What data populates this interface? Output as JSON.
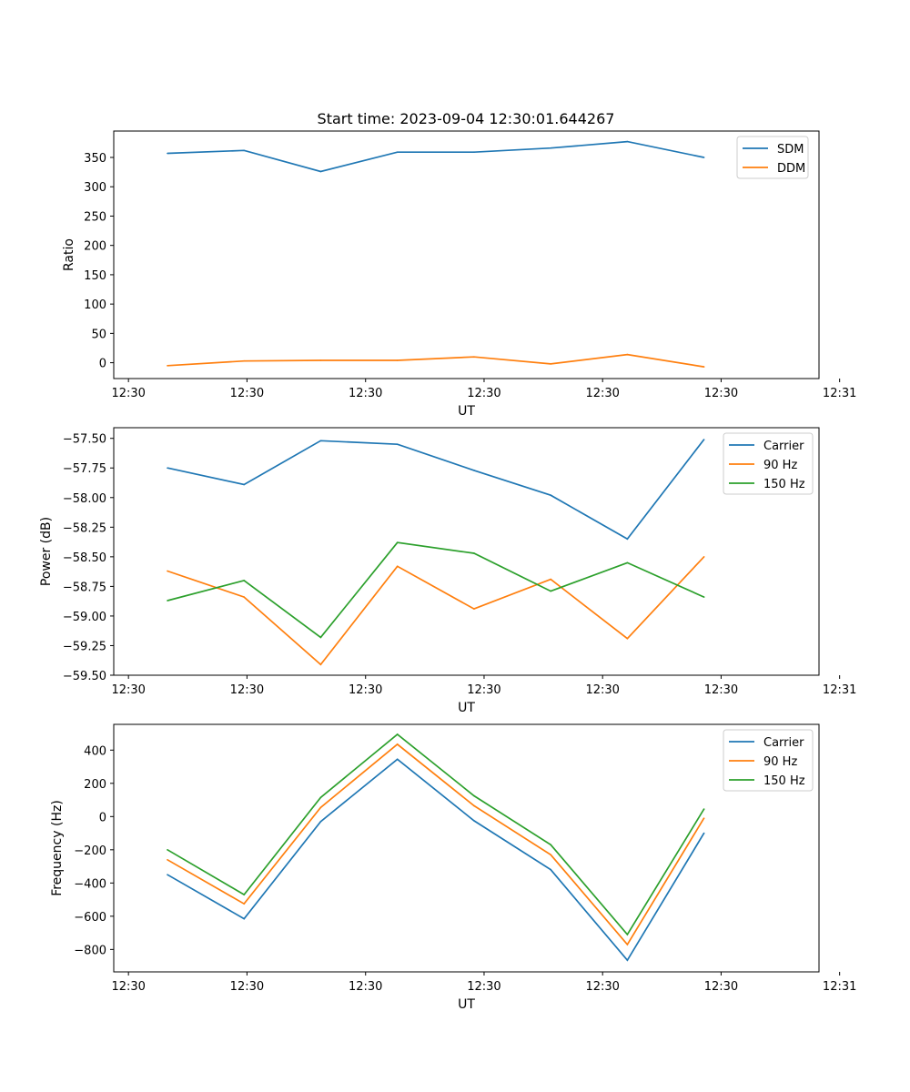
{
  "figure_title": "Start time: 2023-09-04 12:30:01.644267",
  "colors": {
    "blue": "#1f77b4",
    "orange": "#ff7f0e",
    "green": "#2ca02c"
  },
  "chart_data": [
    {
      "type": "line",
      "title": "Start time: 2023-09-04 12:30:01.644267",
      "xlabel": "UT",
      "ylabel": "Ratio",
      "legend": "top-right",
      "x_ticks": [
        "12:30",
        "12:30",
        "12:30",
        "12:30",
        "12:30",
        "12:30",
        "12:31"
      ],
      "y_ticks": [
        0,
        50,
        100,
        150,
        200,
        250,
        300,
        350
      ],
      "ylim": [
        -27,
        395
      ],
      "x": [
        1,
        2,
        3,
        4,
        5,
        6,
        7,
        8
      ],
      "xlim": [
        0.3,
        9.5
      ],
      "series": [
        {
          "name": "SDM",
          "color": "#1f77b4",
          "values": [
            357,
            362,
            326,
            359,
            359,
            366,
            377,
            350
          ]
        },
        {
          "name": "DDM",
          "color": "#ff7f0e",
          "values": [
            -5,
            3,
            4,
            4,
            10,
            -2,
            14,
            -7
          ]
        }
      ]
    },
    {
      "type": "line",
      "title": "",
      "xlabel": "UT",
      "ylabel": "Power (dB)",
      "legend": "top-right",
      "x_ticks": [
        "12:30",
        "12:30",
        "12:30",
        "12:30",
        "12:30",
        "12:30",
        "12:31"
      ],
      "y_ticks": [
        "−57.50",
        "−57.75",
        "−58.00",
        "−58.25",
        "−58.50",
        "−58.75",
        "−59.00",
        "−59.25",
        "−59.50"
      ],
      "y_tick_values": [
        -57.5,
        -57.75,
        -58.0,
        -58.25,
        -58.5,
        -58.75,
        -59.0,
        -59.25,
        -59.5
      ],
      "ylim": [
        -59.5,
        -57.41
      ],
      "x": [
        1,
        2,
        3,
        4,
        5,
        6,
        7,
        8
      ],
      "xlim": [
        0.3,
        9.5
      ],
      "series": [
        {
          "name": "Carrier",
          "color": "#1f77b4",
          "values": [
            -57.75,
            -57.89,
            -57.52,
            -57.55,
            -57.77,
            -57.98,
            -58.35,
            -57.51
          ]
        },
        {
          "name": "90 Hz",
          "color": "#ff7f0e",
          "values": [
            -58.62,
            -58.84,
            -59.41,
            -58.58,
            -58.94,
            -58.69,
            -59.19,
            -58.5
          ]
        },
        {
          "name": "150 Hz",
          "color": "#2ca02c",
          "values": [
            -58.87,
            -58.7,
            -59.18,
            -58.38,
            -58.47,
            -58.79,
            -58.55,
            -58.84
          ]
        }
      ]
    },
    {
      "type": "line",
      "title": "",
      "xlabel": "UT",
      "ylabel": "Frequency (Hz)",
      "legend": "top-right",
      "x_ticks": [
        "12:30",
        "12:30",
        "12:30",
        "12:30",
        "12:30",
        "12:30",
        "12:31"
      ],
      "y_ticks": [
        "400",
        "200",
        "0",
        "−200",
        "−400",
        "−600",
        "−800"
      ],
      "y_tick_values": [
        400,
        200,
        0,
        -200,
        -400,
        -600,
        -800
      ],
      "ylim": [
        -935,
        555
      ],
      "x": [
        1,
        2,
        3,
        4,
        5,
        6,
        7,
        8
      ],
      "xlim": [
        0.3,
        9.5
      ],
      "series": [
        {
          "name": "Carrier",
          "color": "#1f77b4",
          "values": [
            -350,
            -615,
            -30,
            345,
            -25,
            -320,
            -865,
            -100
          ]
        },
        {
          "name": "90 Hz",
          "color": "#ff7f0e",
          "values": [
            -260,
            -525,
            55,
            435,
            65,
            -230,
            -770,
            -10
          ]
        },
        {
          "name": "150 Hz",
          "color": "#2ca02c",
          "values": [
            -200,
            -470,
            115,
            495,
            125,
            -170,
            -710,
            45
          ]
        }
      ]
    }
  ]
}
